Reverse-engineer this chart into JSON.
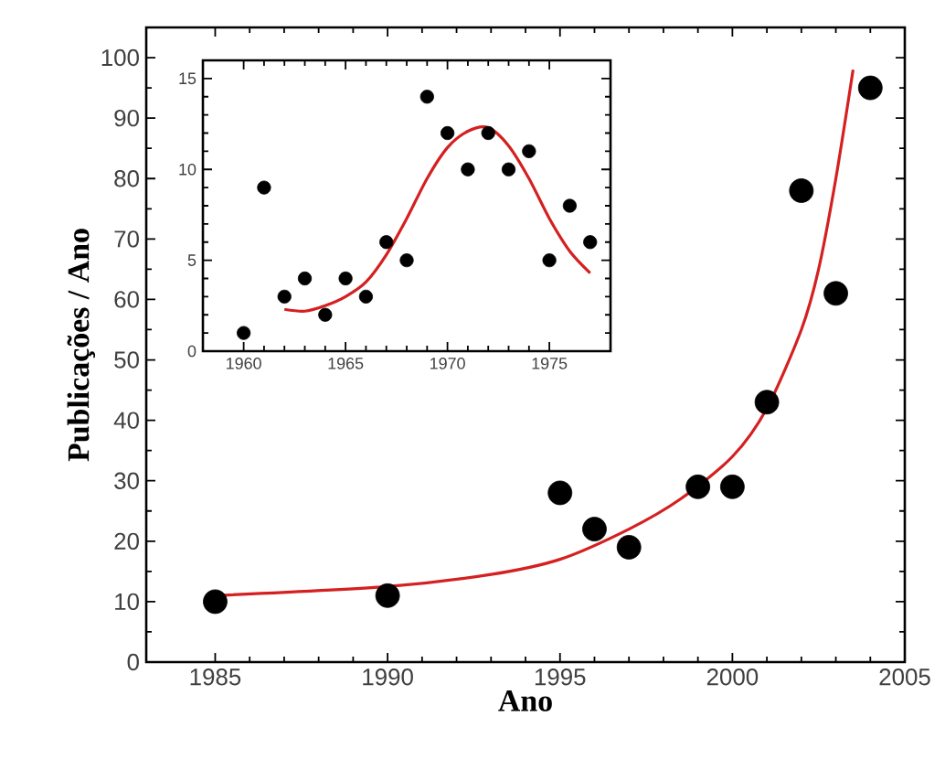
{
  "chart_data": [
    {
      "type": "scatter",
      "xlabel": "Ano",
      "ylabel": "Publicações / Ano",
      "xlim": [
        1983,
        2005
      ],
      "ylim": [
        0,
        105
      ],
      "xticks": [
        1985,
        1990,
        1995,
        2000,
        2005
      ],
      "yticks": [
        0,
        10,
        20,
        30,
        40,
        50,
        60,
        70,
        80,
        90,
        100
      ],
      "series": [
        {
          "color": "#000000",
          "marker": "circle",
          "x": [
            1985,
            1990,
            1995,
            1996,
            1997,
            1999,
            2000,
            2001,
            2002,
            2003,
            2004
          ],
          "values": [
            10,
            11,
            28,
            22,
            19,
            29,
            29,
            43,
            78,
            61,
            95
          ]
        },
        {
          "type": "line",
          "color": "#d42020",
          "marker": "none",
          "line_style": "solid",
          "x": [
            1985,
            1990,
            1993,
            1995,
            1997,
            1998.5,
            2000,
            2001,
            2002,
            2002.5,
            2003,
            2003.5
          ],
          "values": [
            11,
            12.5,
            14.5,
            17,
            22,
            27,
            34,
            42,
            55,
            65,
            80,
            98
          ]
        }
      ]
    },
    {
      "type": "scatter",
      "xlim": [
        1958,
        1978
      ],
      "ylim": [
        0,
        16
      ],
      "xticks": [
        1960,
        1965,
        1970,
        1975
      ],
      "yticks": [
        0,
        5,
        10,
        15
      ],
      "series": [
        {
          "color": "#000000",
          "marker": "circle",
          "x": [
            1960,
            1961,
            1962,
            1963,
            1964,
            1965,
            1966,
            1967,
            1968,
            1969,
            1970,
            1971,
            1972,
            1973,
            1974,
            1975,
            1976,
            1977
          ],
          "values": [
            1,
            9,
            3,
            4,
            2,
            4,
            3,
            6,
            5,
            14,
            12,
            10,
            12,
            10,
            11,
            5,
            8,
            6
          ]
        },
        {
          "type": "line",
          "color": "#d42020",
          "marker": "none",
          "line_style": "solid",
          "x": [
            1962,
            1963,
            1964,
            1965,
            1966,
            1967,
            1968,
            1969,
            1970,
            1971,
            1972,
            1973,
            1974,
            1975,
            1976,
            1977
          ],
          "values": [
            2.3,
            2.2,
            2.5,
            3,
            3.8,
            5.3,
            7.3,
            9.5,
            11.2,
            12.1,
            12.3,
            11.3,
            9.5,
            7.3,
            5.5,
            4.3
          ]
        }
      ]
    }
  ]
}
